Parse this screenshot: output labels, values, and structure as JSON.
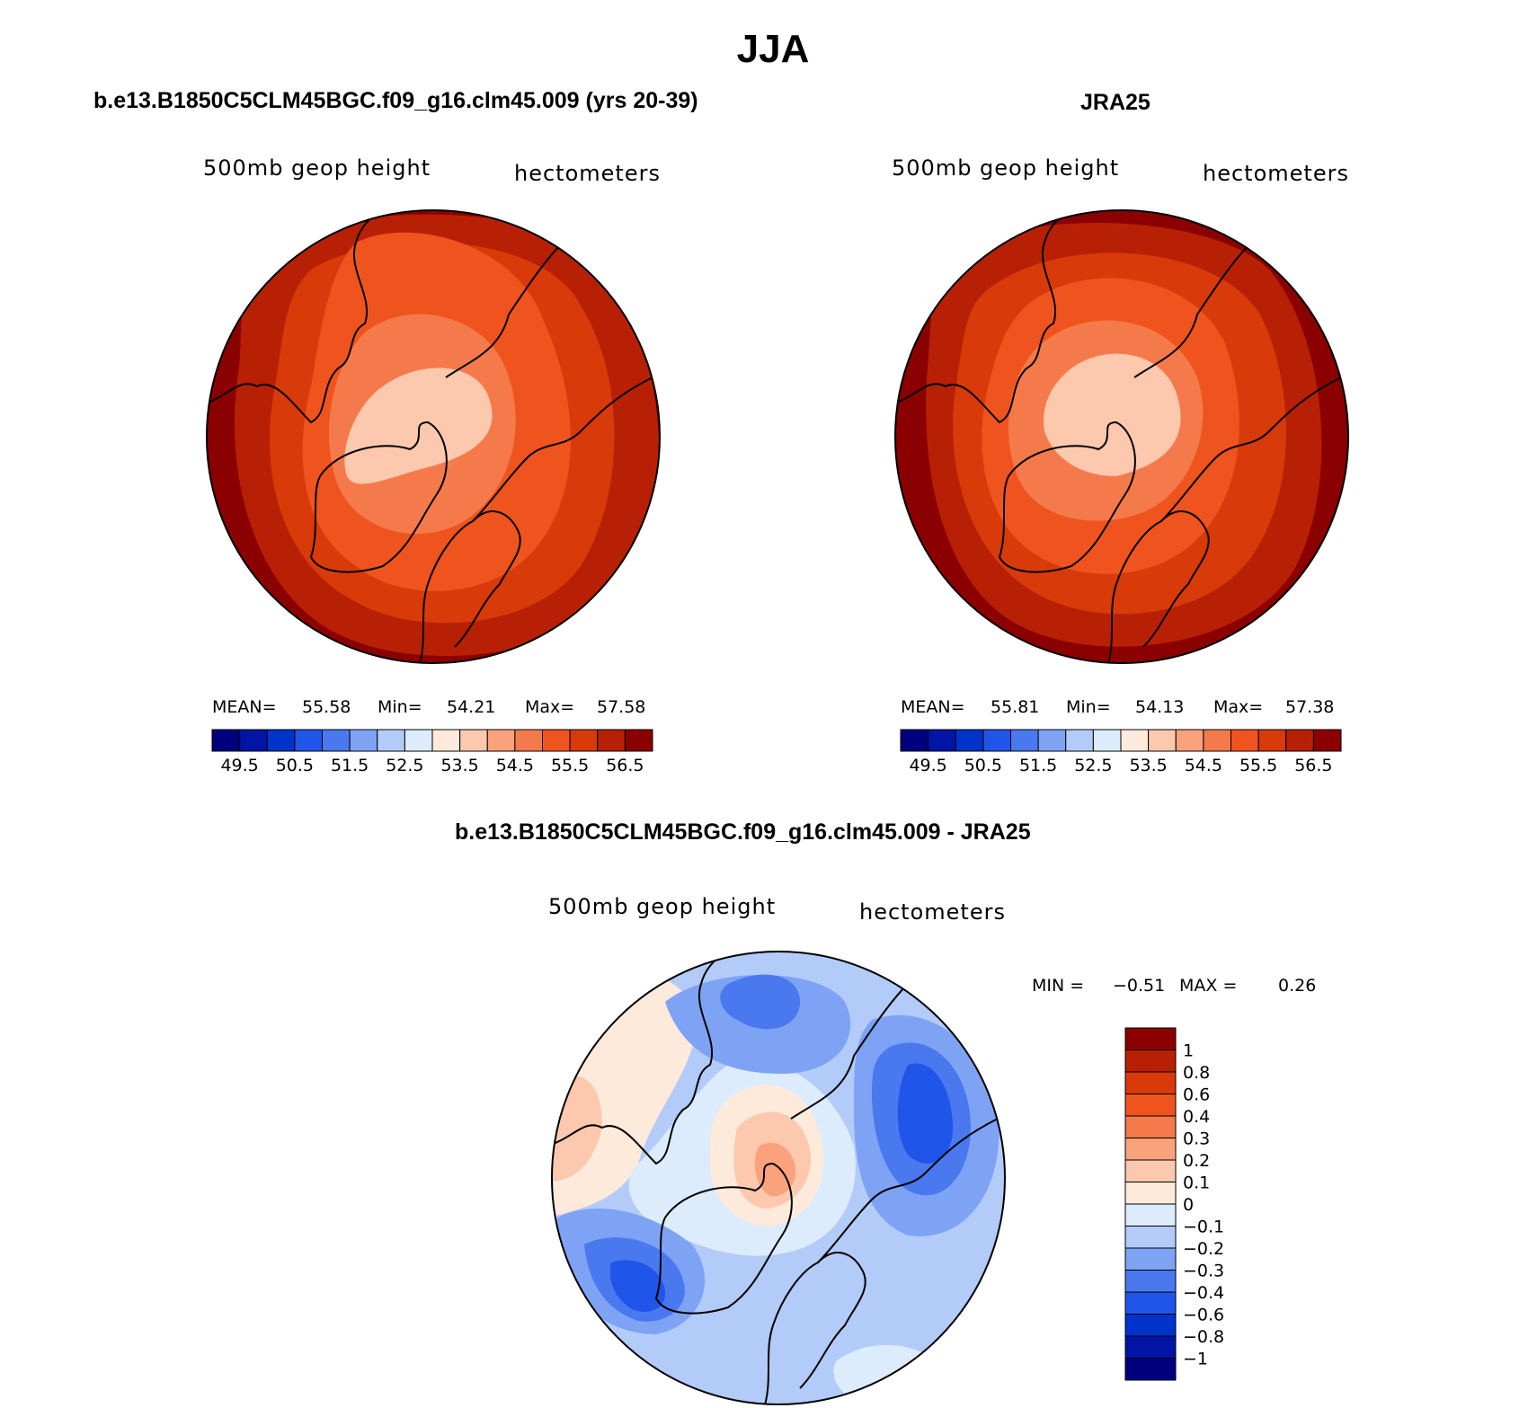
{
  "main_title": "JJA",
  "panels": [
    {
      "title": "b.e13.B1850C5CLM45BGC.f09_g16.clm45.009 (yrs 20-39)",
      "left_label": "500mb geop height",
      "right_label": "hectometers",
      "stats": {
        "mean_label": "MEAN=",
        "mean": "55.58",
        "min_label": "Min=",
        "min": "54.21",
        "max_label": "Max=",
        "max": "57.58"
      }
    },
    {
      "title": "JRA25",
      "left_label": "500mb geop height",
      "right_label": "hectometers",
      "stats": {
        "mean_label": "MEAN=",
        "mean": "55.81",
        "min_label": "Min=",
        "min": "54.13",
        "max_label": "Max=",
        "max": "57.38"
      }
    },
    {
      "title": "b.e13.B1850C5CLM45BGC.f09_g16.clm45.009 - JRA25",
      "left_label": "500mb geop height",
      "right_label": "hectometers",
      "stats": {
        "min_label": "MIN =",
        "min": "−0.51",
        "max_label": "MAX =",
        "max": "0.26"
      }
    }
  ],
  "chart_data": [
    {
      "type": "heatmap",
      "projection": "north polar stereographic",
      "colorbar": {
        "orientation": "horizontal",
        "colors": [
          "#00007f",
          "#0015a6",
          "#0033cc",
          "#1f55e8",
          "#4a78ef",
          "#7ea3f4",
          "#b3cbf8",
          "#dcecfc",
          "#feeadb",
          "#fcc8ae",
          "#f9a27c",
          "#f57a4b",
          "#f0541e",
          "#d93a0a",
          "#b82006",
          "#8b0000"
        ],
        "tick_labels": [
          "49.5",
          "50.5",
          "51.5",
          "52.5",
          "53.5",
          "54.5",
          "55.5",
          "56.5"
        ],
        "levels": [
          49.5,
          50,
          50.5,
          51,
          51.5,
          52,
          52.5,
          53,
          53.5,
          54,
          54.5,
          55,
          55.5,
          56,
          56.5
        ]
      },
      "field_bands": [
        56.5,
        56.0,
        55.5,
        55.0,
        54.5,
        54.0
      ],
      "mean": 55.58,
      "min": 54.21,
      "max": 57.58
    },
    {
      "type": "heatmap",
      "projection": "north polar stereographic",
      "colorbar": {
        "orientation": "horizontal",
        "colors": [
          "#00007f",
          "#0015a6",
          "#0033cc",
          "#1f55e8",
          "#4a78ef",
          "#7ea3f4",
          "#b3cbf8",
          "#dcecfc",
          "#feeadb",
          "#fcc8ae",
          "#f9a27c",
          "#f57a4b",
          "#f0541e",
          "#d93a0a",
          "#b82006",
          "#8b0000"
        ],
        "tick_labels": [
          "49.5",
          "50.5",
          "51.5",
          "52.5",
          "53.5",
          "54.5",
          "55.5",
          "56.5"
        ],
        "levels": [
          49.5,
          50,
          50.5,
          51,
          51.5,
          52,
          52.5,
          53,
          53.5,
          54,
          54.5,
          55,
          55.5,
          56,
          56.5
        ]
      },
      "field_bands": [
        56.5,
        56.0,
        55.5,
        55.0,
        54.5,
        54.0
      ],
      "mean": 55.81,
      "min": 54.13,
      "max": 57.38
    },
    {
      "type": "heatmap",
      "projection": "north polar stereographic",
      "colorbar": {
        "orientation": "vertical",
        "colors": [
          "#8b0000",
          "#b82006",
          "#d93a0a",
          "#f0541e",
          "#f57a4b",
          "#f9a27c",
          "#fcc8ae",
          "#feeadb",
          "#dcecfc",
          "#b3cbf8",
          "#7ea3f4",
          "#4a78ef",
          "#1f55e8",
          "#0033cc",
          "#0015a6",
          "#00007f"
        ],
        "tick_labels": [
          "1",
          "0.8",
          "0.6",
          "0.4",
          "0.3",
          "0.2",
          "0.1",
          "0",
          "−0.1",
          "−0.2",
          "−0.3",
          "−0.4",
          "−0.6",
          "−0.8",
          "−1"
        ],
        "levels": [
          1,
          0.8,
          0.6,
          0.4,
          0.3,
          0.2,
          0.1,
          0,
          -0.1,
          -0.2,
          -0.3,
          -0.4,
          -0.6,
          -0.8,
          -1
        ]
      },
      "min": -0.51,
      "max": 0.26
    }
  ]
}
